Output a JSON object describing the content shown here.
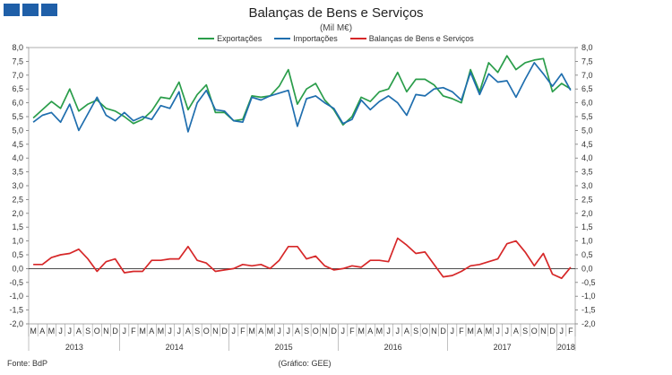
{
  "header": {
    "logo": "GEE"
  },
  "chart_data": {
    "type": "line",
    "title": "Balanças de Bens e Serviços",
    "subtitle": "(Mil M€)",
    "ylim": [
      -2.0,
      8.0
    ],
    "yticks": [
      "8,0",
      "7,5",
      "7,0",
      "6,5",
      "6,0",
      "5,5",
      "5,0",
      "4,5",
      "4,0",
      "3,5",
      "3,0",
      "2,5",
      "2,0",
      "1,5",
      "1,0",
      "0,5",
      "0,0",
      "-0,5",
      "-1,0",
      "-1,5",
      "-2,0"
    ],
    "month_labels": [
      "M",
      "A",
      "M",
      "J",
      "J",
      "A",
      "S",
      "O",
      "N",
      "D",
      "J",
      "F",
      "M",
      "A",
      "M",
      "J",
      "J",
      "A",
      "S",
      "O",
      "N",
      "D",
      "J",
      "F",
      "M",
      "A",
      "M",
      "J",
      "J",
      "A",
      "S",
      "O",
      "N",
      "D",
      "J",
      "F",
      "M",
      "A",
      "M",
      "J",
      "J",
      "A",
      "S",
      "O",
      "N",
      "D",
      "J",
      "F",
      "M",
      "A",
      "M",
      "J",
      "J",
      "A",
      "S",
      "O",
      "N",
      "D",
      "J",
      "F"
    ],
    "years": [
      {
        "label": "2013",
        "start": 0,
        "end": 9
      },
      {
        "label": "2014",
        "start": 10,
        "end": 21
      },
      {
        "label": "2015",
        "start": 22,
        "end": 33
      },
      {
        "label": "2016",
        "start": 34,
        "end": 45
      },
      {
        "label": "2017",
        "start": 46,
        "end": 57
      },
      {
        "label": "2018",
        "start": 58,
        "end": 59
      }
    ],
    "series": [
      {
        "name": "Exportações",
        "color": "#2a9d4a",
        "values": [
          5.45,
          5.75,
          6.05,
          5.8,
          6.5,
          5.7,
          5.95,
          6.1,
          5.8,
          5.7,
          5.5,
          5.25,
          5.4,
          5.7,
          6.2,
          6.15,
          6.75,
          5.75,
          6.3,
          6.65,
          5.65,
          5.65,
          5.35,
          5.4,
          6.25,
          6.2,
          6.25,
          6.6,
          7.2,
          5.95,
          6.5,
          6.7,
          6.1,
          5.75,
          5.2,
          5.5,
          6.2,
          6.05,
          6.4,
          6.5,
          7.1,
          6.4,
          6.85,
          6.85,
          6.65,
          6.25,
          6.15,
          6.0,
          7.2,
          6.4,
          7.45,
          7.1,
          7.7,
          7.2,
          7.45,
          7.55,
          7.6,
          6.4,
          6.7,
          6.5
        ]
      },
      {
        "name": "Importações",
        "color": "#1f6eae",
        "values": [
          5.3,
          5.55,
          5.65,
          5.3,
          5.95,
          5.0,
          5.6,
          6.2,
          5.55,
          5.35,
          5.65,
          5.35,
          5.5,
          5.4,
          5.9,
          5.8,
          6.4,
          4.95,
          6.0,
          6.45,
          5.75,
          5.7,
          5.35,
          5.3,
          6.2,
          6.1,
          6.25,
          6.35,
          6.45,
          5.15,
          6.15,
          6.25,
          6.0,
          5.8,
          5.25,
          5.4,
          6.1,
          5.75,
          6.05,
          6.25,
          6.0,
          5.55,
          6.3,
          6.25,
          6.5,
          6.55,
          6.4,
          6.1,
          7.1,
          6.3,
          7.05,
          6.75,
          6.8,
          6.2,
          6.85,
          7.45,
          7.05,
          6.6,
          7.05,
          6.45
        ]
      },
      {
        "name": "Balanças de Bens e Serviços",
        "color": "#d62728",
        "values": [
          0.15,
          0.15,
          0.4,
          0.5,
          0.55,
          0.7,
          0.35,
          -0.1,
          0.25,
          0.35,
          -0.15,
          -0.1,
          -0.1,
          0.3,
          0.3,
          0.35,
          0.35,
          0.8,
          0.3,
          0.2,
          -0.1,
          -0.05,
          0.0,
          0.15,
          0.1,
          0.15,
          0.0,
          0.3,
          0.8,
          0.8,
          0.35,
          0.45,
          0.1,
          -0.05,
          0.0,
          0.1,
          0.05,
          0.3,
          0.3,
          0.25,
          1.1,
          0.85,
          0.55,
          0.6,
          0.15,
          -0.3,
          -0.25,
          -0.1,
          0.1,
          0.15,
          0.25,
          0.35,
          0.9,
          1.0,
          0.6,
          0.1,
          0.55,
          -0.2,
          -0.35,
          0.05
        ]
      }
    ]
  },
  "footer": {
    "source": "Fonte: BdP",
    "credit": "(Gráfico: GEE)"
  }
}
